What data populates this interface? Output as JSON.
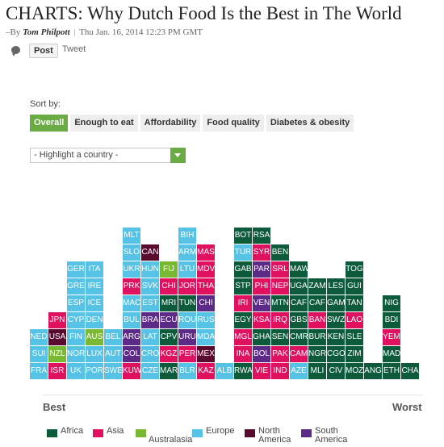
{
  "article": {
    "title": "CHARTS: Why Dutch Food Is the Best in The World",
    "byline_prefix": "–By",
    "author": "Tom Philpott",
    "separator": "|",
    "date": "Thu Jan. 16, 2014 12:23 PM GMT"
  },
  "share": {
    "comment_icon": "speech-bubble-icon",
    "post_label": "Post",
    "tweet_label": "Tweet"
  },
  "sort": {
    "label": "Sort by:",
    "tabs": [
      {
        "label": "Overall",
        "active": true
      },
      {
        "label": "Enough to eat",
        "active": false
      },
      {
        "label": "Affordability",
        "active": false
      },
      {
        "label": "Food quality",
        "active": false
      },
      {
        "label": "Diabetes & obesity",
        "active": false
      }
    ],
    "active_color": "#6bab44"
  },
  "highlight": {
    "placeholder": "- Highlight a country -",
    "arrow_icon": "dropdown-arrow-icon"
  },
  "colors": {
    "Africa": "#0e5b3c",
    "Asia": "#e0115f",
    "Australasia": "#78b833",
    "Europe": "#56c2e6",
    "North America": "#5a0a2e",
    "South America": "#5c2a87"
  },
  "chart_data": {
    "type": "table",
    "description_axis": {
      "left": "Best",
      "right": "Worst"
    },
    "columns": [
      [
        [
          "NED",
          "Europe"
        ],
        [
          "SUI",
          "Europe"
        ],
        [
          "FRA",
          "Europe"
        ]
      ],
      [
        [
          "JPN",
          "Asia"
        ],
        [
          "USA",
          "North America"
        ],
        [
          "NZL",
          "Australasia"
        ],
        [
          "ISR",
          "Asia"
        ]
      ],
      [
        [
          "GER",
          "Europe"
        ],
        [
          "GRE",
          "Europe"
        ],
        [
          "ESP",
          "Europe"
        ],
        [
          "CYP",
          "Europe"
        ],
        [
          "FIN",
          "Europe"
        ],
        [
          "NOR",
          "Europe"
        ],
        [
          "UK",
          "Europe"
        ]
      ],
      [
        [
          "ITA",
          "Europe"
        ],
        [
          "IRE",
          "Europe"
        ],
        [
          "ICE",
          "Europe"
        ],
        [
          "DEN",
          "Europe"
        ],
        [
          "AUS",
          "Australasia"
        ],
        [
          "LUX",
          "Europe"
        ],
        [
          "POR",
          "Europe"
        ]
      ],
      [
        [
          "BEL",
          "Europe"
        ],
        [
          "AUT",
          "Europe"
        ],
        [
          "SWE",
          "Europe"
        ]
      ],
      [
        [
          "MLT",
          "Europe"
        ],
        [
          "SLO",
          "Europe"
        ],
        [
          "UKR",
          "Europe"
        ],
        [
          "PRK",
          "Asia"
        ],
        [
          "MAC",
          "Europe"
        ],
        [
          "BUL",
          "Europe"
        ],
        [
          "ARG",
          "South America"
        ],
        [
          "COL",
          "South America"
        ],
        [
          "KUW",
          "Asia"
        ]
      ],
      [
        [
          "CAN",
          "North America"
        ],
        [
          "HUN",
          "Europe"
        ],
        [
          "SVK",
          "Europe"
        ],
        [
          "EST",
          "Europe"
        ],
        [
          "BRA",
          "South America"
        ],
        [
          "LAT",
          "Europe"
        ],
        [
          "CRO",
          "Europe"
        ],
        [
          "CZE",
          "Europe"
        ]
      ],
      [
        [
          "FIJ",
          "Australasia"
        ],
        [
          "CHI",
          "Asia"
        ],
        [
          "MRI",
          "Africa"
        ],
        [
          "ECU",
          "South America"
        ],
        [
          "CPV",
          "Africa"
        ],
        [
          "KGZ",
          "Asia"
        ],
        [
          "MAR",
          "Africa"
        ]
      ],
      [
        [
          "BIH",
          "Europe"
        ],
        [
          "ARM",
          "Europe"
        ],
        [
          "LTU",
          "Europe"
        ],
        [
          "JOR",
          "Asia"
        ],
        [
          "TUN",
          "Africa"
        ],
        [
          "ROU",
          "Europe"
        ],
        [
          "URU",
          "South America"
        ],
        [
          "PER",
          "Asia"
        ],
        [
          "BLR",
          "Europe"
        ]
      ],
      [
        [
          "MAS",
          "Asia"
        ],
        [
          "MDV",
          "Asia"
        ],
        [
          "THA",
          "Asia"
        ],
        [
          "CHI",
          "South America"
        ],
        [
          "RUS",
          "Europe"
        ],
        [
          "MDA",
          "Europe"
        ],
        [
          "MEX",
          "North America"
        ],
        [
          "KAZ",
          "Asia"
        ]
      ],
      [
        [
          "ALB",
          "Europe"
        ]
      ],
      [
        [
          "BOT",
          "Africa"
        ],
        [
          "TUR",
          "Europe"
        ],
        [
          "GAB",
          "Africa"
        ],
        [
          "STP",
          "Africa"
        ],
        [
          "IRI",
          "Asia"
        ],
        [
          "EGY",
          "Africa"
        ],
        [
          "MGL",
          "Asia"
        ],
        [
          "INA",
          "Asia"
        ],
        [
          "RWA",
          "Africa"
        ]
      ],
      [
        [
          "RSA",
          "Africa"
        ],
        [
          "SYR",
          "Asia"
        ],
        [
          "PAR",
          "South America"
        ],
        [
          "PHI",
          "Asia"
        ],
        [
          "VEN",
          "South America"
        ],
        [
          "KSA",
          "Asia"
        ],
        [
          "GHA",
          "Africa"
        ],
        [
          "BOL",
          "South America"
        ],
        [
          "VIE",
          "Asia"
        ]
      ],
      [
        [
          "BEN",
          "Africa"
        ],
        [
          "SRL",
          "Asia"
        ],
        [
          "NEP",
          "Asia"
        ],
        [
          "MTN",
          "Africa"
        ],
        [
          "IRQ",
          "Asia"
        ],
        [
          "SEN",
          "Africa"
        ],
        [
          "PAK",
          "Asia"
        ],
        [
          "IND",
          "Asia"
        ]
      ],
      [
        [
          "MAW",
          "Africa"
        ],
        [
          "UGA",
          "Africa"
        ],
        [
          "CAF",
          "Africa"
        ],
        [
          "GBS",
          "Africa"
        ],
        [
          "CMR",
          "Africa"
        ],
        [
          "CAM",
          "Asia"
        ],
        [
          "AZE",
          "Europe"
        ]
      ],
      [
        [
          "ZAM",
          "Africa"
        ],
        [
          "CAF",
          "Africa"
        ],
        [
          "BAN",
          "Asia"
        ],
        [
          "BUR",
          "Africa"
        ],
        [
          "NGR",
          "Africa"
        ],
        [
          "MLI",
          "Africa"
        ]
      ],
      [
        [
          "LES",
          "Africa"
        ],
        [
          "GAM",
          "Africa"
        ],
        [
          "SWZ",
          "Africa"
        ],
        [
          "KEN",
          "Africa"
        ],
        [
          "CGO",
          "Africa"
        ],
        [
          "CIV",
          "Africa"
        ]
      ],
      [
        [
          "TOG",
          "Africa"
        ],
        [
          "GUI",
          "Africa"
        ],
        [
          "TAN",
          "Africa"
        ],
        [
          "LAO",
          "Asia"
        ],
        [
          "SLE",
          "Africa"
        ],
        [
          "ZIM",
          "Africa"
        ],
        [
          "MOZ",
          "Africa"
        ]
      ],
      [
        [
          "ANG",
          "Africa"
        ]
      ],
      [
        [
          "NIG",
          "Africa"
        ],
        [
          "BDI",
          "Africa"
        ],
        [
          "YEM",
          "Asia"
        ],
        [
          "MAD",
          "Africa"
        ],
        [
          "ETH",
          "Africa"
        ]
      ],
      [
        [
          "CHA",
          "Africa"
        ]
      ]
    ]
  },
  "legend": [
    {
      "label": "Africa",
      "color": "#0e5b3c"
    },
    {
      "label": "Asia",
      "color": "#e0115f"
    },
    {
      "label": "Australasia",
      "color": "#78b833"
    },
    {
      "label": "Europe",
      "color": "#56c2e6"
    },
    {
      "label": "North America",
      "color": "#5a0a2e"
    },
    {
      "label": "South America",
      "color": "#5c2a87"
    }
  ]
}
